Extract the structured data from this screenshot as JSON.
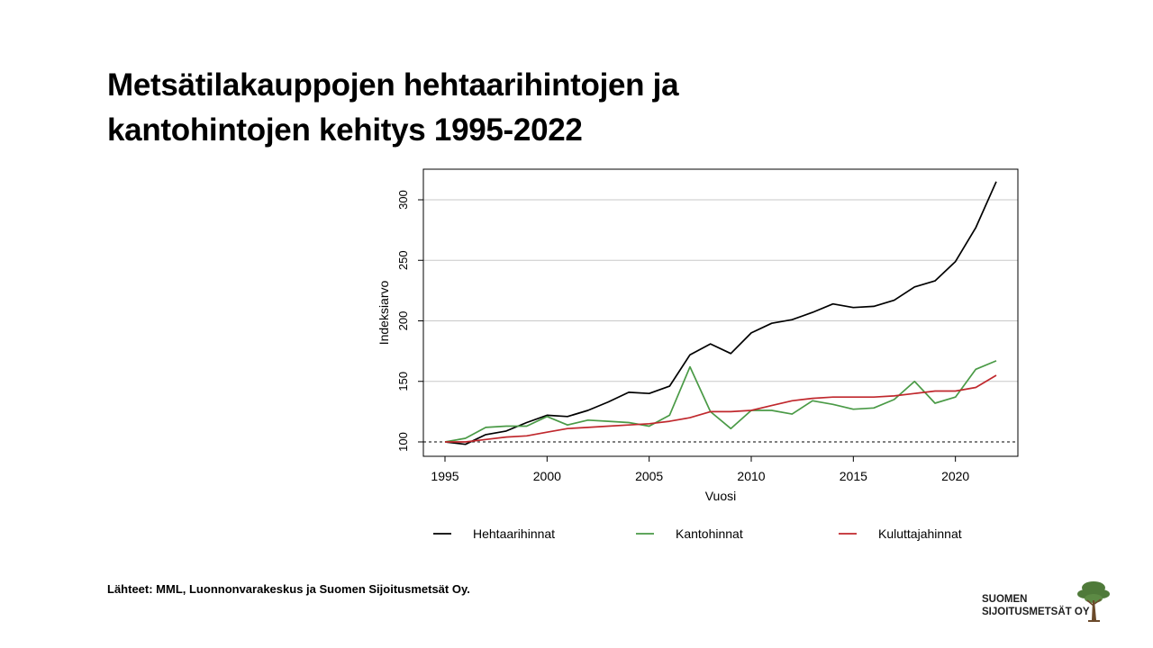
{
  "title": {
    "line1": "Metsätilakauppojen hehtaarihintojen ja",
    "line2": "kantohintojen kehitys 1995-2022"
  },
  "source": "Lähteet: MML, Luonnonvarakeskus ja Suomen Sijoitusmetsät Oy.",
  "logo": {
    "line1": "SUOMEN",
    "line2": "SIJOITUSMETSÄT OY",
    "icon": "tree-icon",
    "color": "#4f7a3a"
  },
  "chart_data": {
    "type": "line",
    "xlabel": "Vuosi",
    "ylabel": "Indeksiarvo",
    "xlim": [
      1995,
      2022
    ],
    "ylim": [
      100,
      315
    ],
    "x_ticks": [
      1995,
      2000,
      2005,
      2010,
      2015,
      2020
    ],
    "y_ticks": [
      100,
      150,
      200,
      250,
      300
    ],
    "grid": "horizontal",
    "reference_line": {
      "y": 100,
      "style": "dashed"
    },
    "legend_position": "bottom",
    "x": [
      1995,
      1996,
      1997,
      1998,
      1999,
      2000,
      2001,
      2002,
      2003,
      2004,
      2005,
      2006,
      2007,
      2008,
      2009,
      2010,
      2011,
      2012,
      2013,
      2014,
      2015,
      2016,
      2017,
      2018,
      2019,
      2020,
      2021,
      2022
    ],
    "series": [
      {
        "name": "Hehtaarihinnat",
        "color": "#000000",
        "values": [
          100,
          98,
          106,
          109,
          116,
          122,
          121,
          126,
          133,
          141,
          140,
          146,
          172,
          181,
          173,
          190,
          198,
          201,
          207,
          214,
          211,
          212,
          217,
          228,
          233,
          249,
          277,
          315
        ]
      },
      {
        "name": "Kantohinnat",
        "color": "#4a9a46",
        "values": [
          100,
          103,
          112,
          113,
          113,
          121,
          114,
          118,
          117,
          116,
          113,
          122,
          162,
          125,
          111,
          126,
          126,
          123,
          134,
          131,
          127,
          128,
          135,
          150,
          132,
          137,
          160,
          167
        ]
      },
      {
        "name": "Kuluttajahinnat",
        "color": "#c0282d",
        "values": [
          100,
          100,
          102,
          104,
          105,
          108,
          111,
          112,
          113,
          114,
          115,
          117,
          120,
          125,
          125,
          126,
          130,
          134,
          136,
          137,
          137,
          137,
          138,
          140,
          142,
          142,
          145,
          155
        ]
      }
    ]
  }
}
